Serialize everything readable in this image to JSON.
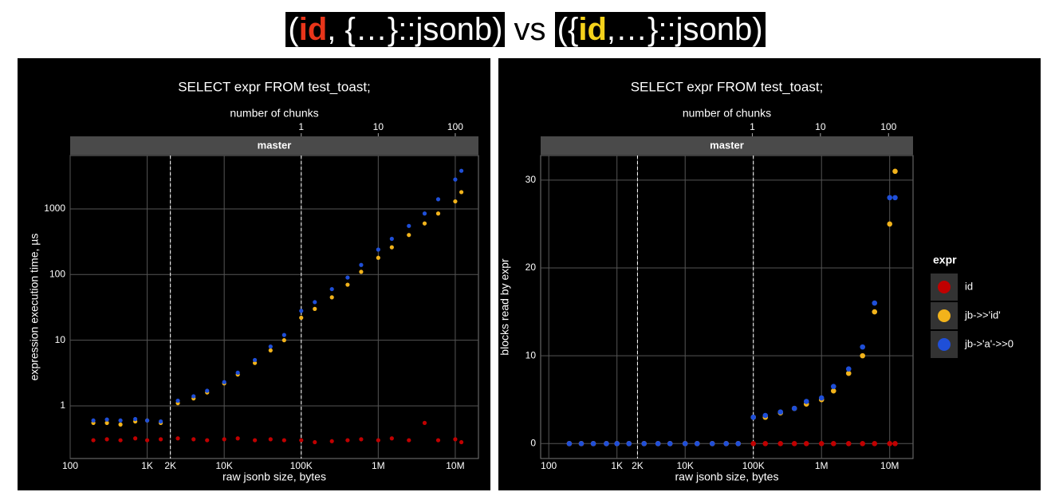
{
  "header": {
    "left": [
      "(",
      "id",
      ", {…}::jsonb)"
    ],
    "middle": "vs",
    "right": [
      "({",
      "id",
      ",…}::jsonb)"
    ]
  },
  "chart_data": [
    {
      "type": "scatter",
      "title": "SELECT expr FROM test_toast;",
      "facet": "master",
      "xlabel": "raw jsonb size, bytes",
      "ylabel": "expression execution time, µs",
      "x2label": "number of chunks",
      "xlog": true,
      "ylog": true,
      "grid": true,
      "xlim": [
        100,
        20000000
      ],
      "ylim": [
        0.158,
        6500
      ],
      "x2lim": [
        0.001,
        200
      ],
      "xticks": [
        100,
        {
          "value": 1000,
          "label": "1K"
        },
        {
          "value": 2000,
          "label": "2K"
        },
        {
          "value": 10000,
          "label": "10K"
        },
        {
          "value": 100000,
          "label": "100K"
        },
        {
          "value": 1000000,
          "label": "1M"
        },
        {
          "value": 10000000,
          "label": "10M"
        }
      ],
      "yticks": [
        1,
        10,
        100,
        1000
      ],
      "x2ticks": [
        1,
        10,
        100
      ],
      "vlines": [
        2000,
        100000
      ],
      "x": [
        200,
        300,
        450,
        700,
        1000,
        1500,
        2500,
        4000,
        6000,
        10000,
        15000,
        25000,
        40000,
        60000,
        100000,
        150000,
        250000,
        400000,
        600000,
        1000000,
        1500000,
        2500000,
        4000000,
        6000000,
        10000000,
        12000000
      ],
      "series": [
        {
          "color": "#c00000",
          "values": [
            0.3,
            0.31,
            0.3,
            0.32,
            0.3,
            0.31,
            0.32,
            0.31,
            0.3,
            0.31,
            0.32,
            0.3,
            0.31,
            0.3,
            0.3,
            0.28,
            0.29,
            0.3,
            0.31,
            0.3,
            0.32,
            0.3,
            0.55,
            0.3,
            0.31,
            0.28
          ]
        },
        {
          "color": "#f2b31b",
          "values": [
            0.55,
            0.55,
            0.52,
            0.58,
            0.6,
            0.55,
            1.1,
            1.3,
            1.6,
            2.2,
            3,
            4.5,
            7,
            10,
            22,
            30,
            45,
            70,
            110,
            180,
            260,
            400,
            600,
            850,
            1300,
            1800
          ]
        },
        {
          "color": "#1f4fd8",
          "values": [
            0.6,
            0.62,
            0.6,
            0.63,
            0.6,
            0.58,
            1.2,
            1.4,
            1.7,
            2.3,
            3.2,
            5,
            8,
            12,
            28,
            38,
            60,
            90,
            140,
            240,
            350,
            550,
            850,
            1400,
            2800,
            3800
          ]
        }
      ]
    },
    {
      "type": "scatter",
      "title": "SELECT expr FROM test_toast;",
      "facet": "master",
      "xlabel": "raw jsonb size, bytes",
      "ylabel": "blocks read by expr",
      "x2label": "number of chunks",
      "xlog": true,
      "ylog": false,
      "grid": true,
      "xlim": [
        76,
        22000000
      ],
      "ylim": [
        -1.7,
        32.8
      ],
      "x2lim": [
        0.00078,
        229
      ],
      "xticks": [
        100,
        {
          "value": 1000,
          "label": "1K"
        },
        {
          "value": 2000,
          "label": "2K"
        },
        {
          "value": 10000,
          "label": "10K"
        },
        {
          "value": 100000,
          "label": "100K"
        },
        {
          "value": 1000000,
          "label": "1M"
        },
        {
          "value": 10000000,
          "label": "10M"
        }
      ],
      "yticks": [
        0,
        10,
        20,
        30
      ],
      "x2ticks": [
        1,
        10,
        100
      ],
      "vlines": [
        2000,
        100000
      ],
      "legend": {
        "title": "expr",
        "position": "right"
      },
      "x": [
        200,
        300,
        450,
        700,
        1000,
        1500,
        2500,
        4000,
        6000,
        10000,
        15000,
        25000,
        40000,
        60000,
        100000,
        150000,
        250000,
        400000,
        600000,
        1000000,
        1500000,
        2500000,
        4000000,
        6000000,
        10000000,
        12000000
      ],
      "series": [
        {
          "name": "id",
          "color": "#c00000",
          "values": [
            0,
            0,
            0,
            0,
            0,
            0,
            0,
            0,
            0,
            0,
            0,
            0,
            0,
            0,
            0,
            0,
            0,
            0,
            0,
            0,
            0,
            0,
            0,
            0,
            0,
            0
          ]
        },
        {
          "name": "jb->>'id'",
          "color": "#f2b31b",
          "values": [
            0,
            0,
            0,
            0,
            0,
            0,
            0,
            0,
            0,
            0,
            0,
            0,
            0,
            0,
            3,
            3,
            3.5,
            4,
            4.5,
            5,
            6,
            8,
            10,
            15,
            25,
            31
          ]
        },
        {
          "name": "jb->'a'->>0",
          "color": "#1f4fd8",
          "values": [
            0,
            0,
            0,
            0,
            0,
            0,
            0,
            0,
            0,
            0,
            0,
            0,
            0,
            0,
            3,
            3.2,
            3.6,
            4,
            4.8,
            5.2,
            6.5,
            8.5,
            11,
            16,
            28,
            28
          ]
        }
      ]
    }
  ]
}
